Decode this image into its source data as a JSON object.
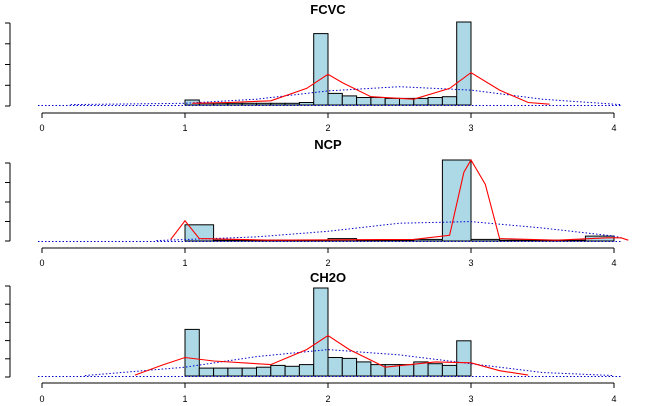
{
  "chart_data": [
    {
      "type": "bar",
      "title": "FCVC",
      "xlim": [
        0,
        4
      ],
      "x_ticks": [
        "0",
        "1",
        "2",
        "3",
        "4"
      ],
      "y_tick_count": 5,
      "ylim": [
        0,
        1
      ],
      "bin_width": 0.1,
      "bins": [
        {
          "x": 1.0,
          "h": 0.06
        },
        {
          "x": 1.1,
          "h": 0.02
        },
        {
          "x": 1.2,
          "h": 0.02
        },
        {
          "x": 1.3,
          "h": 0.02
        },
        {
          "x": 1.4,
          "h": 0.02
        },
        {
          "x": 1.5,
          "h": 0.02
        },
        {
          "x": 1.6,
          "h": 0.02
        },
        {
          "x": 1.7,
          "h": 0.02
        },
        {
          "x": 1.8,
          "h": 0.03
        },
        {
          "x": 1.9,
          "h": 0.86
        },
        {
          "x": 2.0,
          "h": 0.14
        },
        {
          "x": 2.1,
          "h": 0.11
        },
        {
          "x": 2.2,
          "h": 0.09
        },
        {
          "x": 2.3,
          "h": 0.09
        },
        {
          "x": 2.4,
          "h": 0.08
        },
        {
          "x": 2.5,
          "h": 0.08
        },
        {
          "x": 2.6,
          "h": 0.08
        },
        {
          "x": 2.7,
          "h": 0.09
        },
        {
          "x": 2.8,
          "h": 0.1
        },
        {
          "x": 2.9,
          "h": 1.0
        }
      ],
      "density_kde": [
        [
          1.05,
          0.02
        ],
        [
          1.3,
          0.03
        ],
        [
          1.6,
          0.05
        ],
        [
          1.85,
          0.2
        ],
        [
          2.0,
          0.37
        ],
        [
          2.1,
          0.27
        ],
        [
          2.3,
          0.1
        ],
        [
          2.6,
          0.07
        ],
        [
          2.85,
          0.2
        ],
        [
          3.0,
          0.39
        ],
        [
          3.2,
          0.18
        ],
        [
          3.4,
          0.03
        ],
        [
          3.55,
          0.01
        ]
      ],
      "density_normal": [
        [
          0.2,
          0.005
        ],
        [
          1.0,
          0.02
        ],
        [
          1.5,
          0.07
        ],
        [
          2.0,
          0.17
        ],
        [
          2.5,
          0.22
        ],
        [
          3.0,
          0.18
        ],
        [
          3.5,
          0.07
        ],
        [
          4.0,
          0.01
        ],
        [
          4.05,
          0.005
        ]
      ]
    },
    {
      "type": "bar",
      "title": "NCP",
      "xlim": [
        0,
        4
      ],
      "x_ticks": [
        "0",
        "1",
        "2",
        "3",
        "4"
      ],
      "y_tick_count": 5,
      "ylim": [
        0,
        1
      ],
      "bin_width": 0.2,
      "bins": [
        {
          "x": 1.0,
          "h": 0.2
        },
        {
          "x": 1.2,
          "h": 0.01
        },
        {
          "x": 1.4,
          "h": 0.01
        },
        {
          "x": 1.6,
          "h": 0.01
        },
        {
          "x": 1.8,
          "h": 0.01
        },
        {
          "x": 2.0,
          "h": 0.03
        },
        {
          "x": 2.2,
          "h": 0.01
        },
        {
          "x": 2.4,
          "h": 0.01
        },
        {
          "x": 2.6,
          "h": 0.02
        },
        {
          "x": 2.8,
          "h": 1.0
        },
        {
          "x": 3.0,
          "h": 0.02
        },
        {
          "x": 3.2,
          "h": 0.01
        },
        {
          "x": 3.4,
          "h": 0.01
        },
        {
          "x": 3.6,
          "h": 0.01
        },
        {
          "x": 3.8,
          "h": 0.06
        }
      ],
      "density_kde": [
        [
          0.9,
          0.02
        ],
        [
          1.0,
          0.25
        ],
        [
          1.1,
          0.03
        ],
        [
          1.6,
          0.01
        ],
        [
          2.6,
          0.02
        ],
        [
          2.85,
          0.07
        ],
        [
          2.95,
          0.85
        ],
        [
          3.0,
          1.0
        ],
        [
          3.1,
          0.7
        ],
        [
          3.2,
          0.03
        ],
        [
          3.6,
          0.01
        ],
        [
          3.95,
          0.04
        ],
        [
          4.05,
          0.04
        ],
        [
          4.1,
          0.01
        ]
      ],
      "density_normal": [
        [
          0.8,
          0.005
        ],
        [
          1.5,
          0.05
        ],
        [
          2.0,
          0.12
        ],
        [
          2.5,
          0.22
        ],
        [
          3.0,
          0.24
        ],
        [
          3.5,
          0.16
        ],
        [
          4.0,
          0.06
        ],
        [
          4.05,
          0.04
        ]
      ]
    },
    {
      "type": "bar",
      "title": "CH2O",
      "xlim": [
        0,
        4
      ],
      "x_ticks": [
        "0",
        "1",
        "2",
        "3",
        "4"
      ],
      "y_tick_count": 6,
      "ylim": [
        0,
        1
      ],
      "bin_width": 0.1,
      "bins": [
        {
          "x": 1.0,
          "h": 0.53
        },
        {
          "x": 1.1,
          "h": 0.09
        },
        {
          "x": 1.2,
          "h": 0.09
        },
        {
          "x": 1.3,
          "h": 0.09
        },
        {
          "x": 1.4,
          "h": 0.09
        },
        {
          "x": 1.5,
          "h": 0.1
        },
        {
          "x": 1.6,
          "h": 0.12
        },
        {
          "x": 1.7,
          "h": 0.11
        },
        {
          "x": 1.8,
          "h": 0.13
        },
        {
          "x": 1.9,
          "h": 1.0
        },
        {
          "x": 2.0,
          "h": 0.21
        },
        {
          "x": 2.1,
          "h": 0.2
        },
        {
          "x": 2.2,
          "h": 0.16
        },
        {
          "x": 2.3,
          "h": 0.13
        },
        {
          "x": 2.4,
          "h": 0.13
        },
        {
          "x": 2.5,
          "h": 0.13
        },
        {
          "x": 2.6,
          "h": 0.16
        },
        {
          "x": 2.7,
          "h": 0.14
        },
        {
          "x": 2.8,
          "h": 0.12
        },
        {
          "x": 2.9,
          "h": 0.4
        }
      ],
      "density_kde": [
        [
          0.65,
          0.01
        ],
        [
          0.85,
          0.13
        ],
        [
          1.0,
          0.21
        ],
        [
          1.2,
          0.17
        ],
        [
          1.6,
          0.13
        ],
        [
          1.85,
          0.3
        ],
        [
          2.0,
          0.46
        ],
        [
          2.15,
          0.3
        ],
        [
          2.4,
          0.1
        ],
        [
          2.75,
          0.16
        ],
        [
          3.0,
          0.15
        ],
        [
          3.2,
          0.06
        ],
        [
          3.4,
          0.01
        ]
      ],
      "density_normal": [
        [
          0.3,
          0.005
        ],
        [
          1.0,
          0.1
        ],
        [
          1.5,
          0.22
        ],
        [
          2.0,
          0.3
        ],
        [
          2.5,
          0.24
        ],
        [
          3.0,
          0.14
        ],
        [
          3.5,
          0.04
        ],
        [
          4.0,
          0.005
        ]
      ]
    }
  ]
}
